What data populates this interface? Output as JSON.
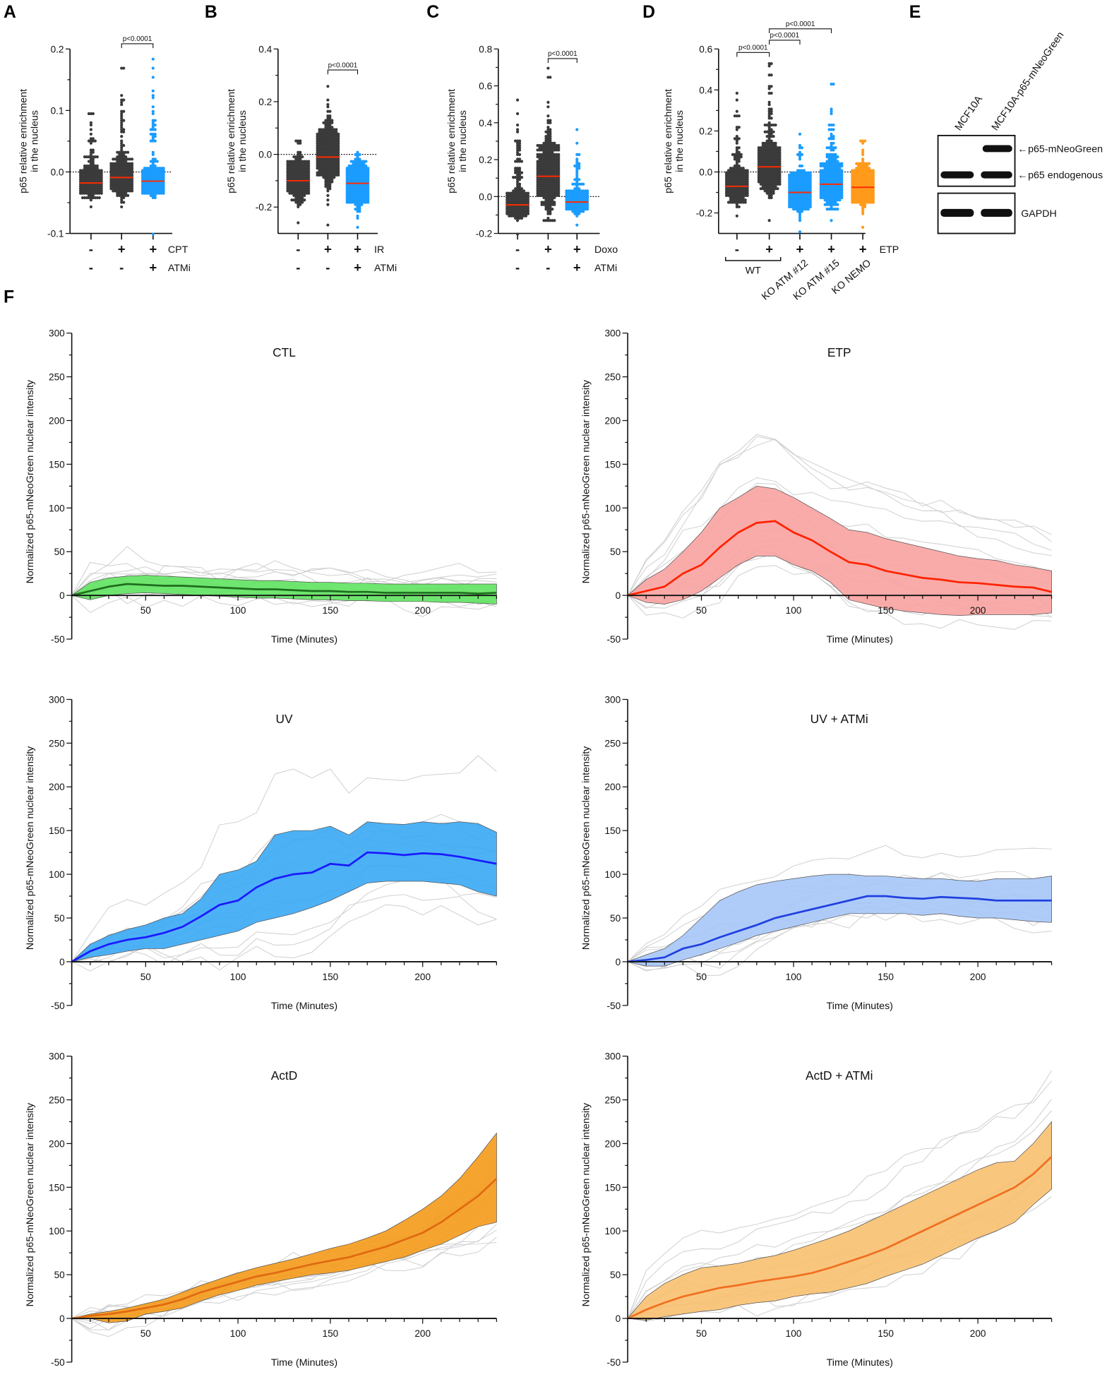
{
  "panel_letters": {
    "A": "A",
    "B": "B",
    "C": "C",
    "D": "D",
    "E": "E",
    "F": "F"
  },
  "blot": {
    "lanes": [
      "MCF10A",
      "MCF10A-p65-mNeoGreen"
    ],
    "band_labels": [
      "p65-mNeoGreen",
      "p65 endogenous"
    ],
    "loading_label": "GAPDH"
  },
  "chart_data": [
    {
      "type": "scatter",
      "panel": "A",
      "ylabel": [
        "p65 relative enrichment",
        "in the nucleus"
      ],
      "ylim": [
        -0.1,
        0.2
      ],
      "yticks": [
        0.2,
        0.1,
        0.0,
        -0.1
      ],
      "ytick_labels": [
        "0.2",
        "0.1",
        "0.0",
        "-0.1"
      ],
      "ref_line": 0,
      "groups": [
        {
          "median": -0.018,
          "sd": 0.01,
          "min": -0.057,
          "max": 0.094,
          "color": "#3a3a3a"
        },
        {
          "median": -0.009,
          "sd": 0.014,
          "min": -0.057,
          "max": 0.167,
          "color": "#3a3a3a"
        },
        {
          "median": -0.015,
          "sd": 0.01,
          "min": -0.1,
          "max": 0.185,
          "color": "#1a9cff"
        }
      ],
      "treatment_rows": [
        {
          "label": "CPT",
          "signs": [
            "-",
            "+",
            "+"
          ]
        },
        {
          "label": "ATMi",
          "signs": [
            "-",
            "-",
            "+"
          ]
        }
      ],
      "comparisons": [
        {
          "from": 1,
          "to": 2,
          "label": "p<0.0001"
        }
      ]
    },
    {
      "type": "scatter",
      "panel": "B",
      "ylabel": [
        "p65 relative enrichment",
        "in the nucleus"
      ],
      "ylim": [
        -0.3,
        0.4
      ],
      "yticks": [
        0.4,
        0.2,
        0.0,
        -0.2
      ],
      "ytick_labels": [
        "0.4",
        "0.2",
        "0.0",
        "-0.2"
      ],
      "ref_line": 0,
      "groups": [
        {
          "median": -0.1,
          "sd": 0.035,
          "min": -0.26,
          "max": 0.05,
          "color": "#3a3a3a"
        },
        {
          "median": -0.01,
          "sd": 0.055,
          "min": -0.27,
          "max": 0.26,
          "color": "#3a3a3a"
        },
        {
          "median": -0.11,
          "sd": 0.04,
          "min": -0.28,
          "max": 0.01,
          "color": "#1a9cff"
        }
      ],
      "treatment_rows": [
        {
          "label": "IR",
          "signs": [
            "-",
            "+",
            "+"
          ]
        },
        {
          "label": "ATMi",
          "signs": [
            "-",
            "-",
            "+"
          ]
        }
      ],
      "comparisons": [
        {
          "from": 1,
          "to": 2,
          "label": "p<0.0001"
        }
      ]
    },
    {
      "type": "scatter",
      "panel": "C",
      "ylabel": [
        "p65 relative enrichment",
        "in the nucleus"
      ],
      "ylim": [
        -0.2,
        0.8
      ],
      "yticks": [
        0.8,
        0.6,
        0.4,
        0.2,
        0.0,
        -0.2
      ],
      "ytick_labels": [
        "0.8",
        "0.6",
        "0.4",
        "0.2",
        "0.0",
        "-0.2"
      ],
      "ref_line": 0,
      "groups": [
        {
          "median": -0.045,
          "sd": 0.03,
          "min": -0.2,
          "max": 0.52,
          "color": "#3a3a3a"
        },
        {
          "median": 0.11,
          "sd": 0.1,
          "min": -0.13,
          "max": 0.7,
          "color": "#3a3a3a"
        },
        {
          "median": -0.03,
          "sd": 0.025,
          "min": -0.15,
          "max": 0.36,
          "color": "#1a9cff"
        }
      ],
      "treatment_rows": [
        {
          "label": "Doxo",
          "signs": [
            "-",
            "+",
            "+"
          ]
        },
        {
          "label": "ATMi",
          "signs": [
            "-",
            "-",
            "+"
          ]
        }
      ],
      "comparisons": [
        {
          "from": 1,
          "to": 2,
          "label": "p<0.0001"
        }
      ]
    },
    {
      "type": "scatter",
      "panel": "D",
      "ylabel": [
        "p65 relative enrichment",
        "in the nucleus"
      ],
      "ylim": [
        -0.3,
        0.6
      ],
      "yticks": [
        0.6,
        0.4,
        0.2,
        0.0,
        -0.2
      ],
      "ytick_labels": [
        "0.6",
        "0.4",
        "0.2",
        "0.0",
        "-0.2"
      ],
      "ref_line": 0,
      "groups": [
        {
          "median": -0.07,
          "sd": 0.035,
          "min": -0.22,
          "max": 0.38,
          "color": "#3a3a3a"
        },
        {
          "median": 0.025,
          "sd": 0.06,
          "min": -0.24,
          "max": 0.53,
          "color": "#3a3a3a"
        },
        {
          "median": -0.1,
          "sd": 0.045,
          "min": -0.29,
          "max": 0.19,
          "color": "#1a9cff"
        },
        {
          "median": -0.06,
          "sd": 0.05,
          "min": -0.24,
          "max": 0.43,
          "color": "#1a9cff"
        },
        {
          "median": -0.075,
          "sd": 0.045,
          "min": -0.27,
          "max": 0.15,
          "color": "#ff9a1a"
        }
      ],
      "treatment_rows": [
        {
          "label": "ETP",
          "signs": [
            "-",
            "+",
            "+",
            "+",
            "+"
          ]
        }
      ],
      "group_labels": {
        "wt": "WT",
        "ko": [
          "KO ATM  #12",
          "KO ATM #15",
          "KO NEMO"
        ]
      },
      "comparisons": [
        {
          "from": 0,
          "to": 1,
          "label": "p<0.0001"
        },
        {
          "from": 1,
          "to": 2,
          "label": "p<0.0001"
        },
        {
          "from": 1,
          "to": 3,
          "label": "p<0.0001"
        }
      ]
    },
    {
      "type": "area",
      "panel": "F",
      "title": "CTL",
      "xlabel": "Time (Minutes)",
      "ylabel": "Normalized p65-mNeoGreen nuclear intensity",
      "xlim": [
        10,
        240
      ],
      "ylim": [
        -50,
        300
      ],
      "xticks": [
        50,
        100,
        150,
        200
      ],
      "yticks": [
        300,
        250,
        200,
        150,
        100,
        50,
        0,
        -50
      ],
      "fill": "#5fe35f",
      "line": "#1f6e1f",
      "individual_traces": 12,
      "x": [
        10,
        20,
        30,
        40,
        50,
        60,
        70,
        80,
        90,
        100,
        110,
        120,
        130,
        140,
        150,
        160,
        170,
        180,
        190,
        200,
        210,
        220,
        230,
        240
      ],
      "mean": [
        0,
        5,
        10,
        13,
        12,
        11,
        11,
        10,
        9,
        8,
        7,
        7,
        6,
        5,
        5,
        4,
        4,
        3,
        3,
        3,
        3,
        3,
        2,
        3
      ],
      "upper": [
        0,
        15,
        20,
        22,
        23,
        22,
        21,
        20,
        19,
        18,
        17,
        17,
        16,
        15,
        15,
        14,
        14,
        13,
        13,
        13,
        13,
        13,
        13,
        13
      ],
      "lower": [
        0,
        -5,
        0,
        2,
        3,
        2,
        1,
        0,
        -1,
        -2,
        -3,
        -3,
        -4,
        -5,
        -5,
        -6,
        -6,
        -7,
        -7,
        -7,
        -8,
        -8,
        -9,
        -10
      ]
    },
    {
      "type": "area",
      "panel": "F",
      "title": "ETP",
      "xlabel": "Time (Minutes)",
      "ylabel": "Normalized p65-mNeoGreen nuclear intensity",
      "xlim": [
        10,
        240
      ],
      "ylim": [
        -50,
        300
      ],
      "xticks": [
        50,
        100,
        150,
        200
      ],
      "yticks": [
        300,
        250,
        200,
        150,
        100,
        50,
        0,
        -50
      ],
      "fill": "#f8a2a0",
      "line": "#ff2200",
      "individual_traces": 12,
      "x": [
        10,
        20,
        30,
        40,
        50,
        60,
        70,
        80,
        90,
        100,
        110,
        120,
        130,
        140,
        150,
        160,
        170,
        180,
        190,
        200,
        210,
        220,
        230,
        240
      ],
      "mean": [
        0,
        5,
        10,
        25,
        35,
        55,
        72,
        83,
        85,
        72,
        63,
        50,
        38,
        35,
        28,
        24,
        20,
        18,
        15,
        14,
        12,
        10,
        9,
        4
      ],
      "upper": [
        0,
        18,
        30,
        50,
        72,
        100,
        112,
        125,
        122,
        112,
        100,
        88,
        75,
        72,
        65,
        60,
        55,
        50,
        45,
        42,
        40,
        35,
        32,
        28
      ],
      "lower": [
        0,
        -8,
        -10,
        -5,
        5,
        20,
        35,
        45,
        45,
        35,
        28,
        15,
        -5,
        -10,
        -15,
        -18,
        -20,
        -22,
        -23,
        -22,
        -22,
        -22,
        -22,
        -20
      ]
    },
    {
      "type": "area",
      "panel": "F",
      "title": "UV",
      "xlabel": "Time (Minutes)",
      "ylabel": "Normalized p65-mNeoGreen nuclear intensity",
      "xlim": [
        10,
        240
      ],
      "ylim": [
        -50,
        300
      ],
      "xticks": [
        50,
        100,
        150,
        200
      ],
      "yticks": [
        300,
        250,
        200,
        150,
        100,
        50,
        0,
        -50
      ],
      "fill": "#3aa9f5",
      "line": "#1a1aff",
      "individual_traces": 12,
      "x": [
        10,
        20,
        30,
        40,
        50,
        60,
        70,
        80,
        90,
        100,
        110,
        120,
        130,
        140,
        150,
        160,
        170,
        180,
        190,
        200,
        210,
        220,
        230,
        240
      ],
      "mean": [
        0,
        12,
        20,
        25,
        28,
        33,
        40,
        52,
        65,
        70,
        85,
        95,
        100,
        102,
        112,
        110,
        125,
        124,
        122,
        124,
        123,
        120,
        116,
        112
      ],
      "upper": [
        0,
        20,
        30,
        37,
        42,
        50,
        55,
        72,
        100,
        105,
        115,
        145,
        150,
        150,
        155,
        145,
        160,
        158,
        157,
        160,
        158,
        160,
        158,
        148
      ],
      "lower": [
        0,
        5,
        8,
        12,
        15,
        15,
        20,
        25,
        30,
        35,
        45,
        50,
        55,
        62,
        70,
        80,
        90,
        92,
        92,
        92,
        90,
        88,
        80,
        75
      ]
    },
    {
      "type": "area",
      "panel": "F",
      "title": "UV + ATMi",
      "xlabel": "Time (Minutes)",
      "ylabel": "Normalized p65-mNeoGreen nuclear intensity",
      "xlim": [
        10,
        240
      ],
      "ylim": [
        -50,
        300
      ],
      "xticks": [
        50,
        100,
        150,
        200
      ],
      "yticks": [
        300,
        250,
        200,
        150,
        100,
        50,
        0,
        -50
      ],
      "fill": "#a6c6f8",
      "line": "#2040e0",
      "individual_traces": 12,
      "x": [
        10,
        20,
        30,
        40,
        50,
        60,
        70,
        80,
        90,
        100,
        110,
        120,
        130,
        140,
        150,
        160,
        170,
        180,
        190,
        200,
        210,
        220,
        230,
        240
      ],
      "mean": [
        0,
        2,
        5,
        15,
        20,
        28,
        35,
        42,
        50,
        55,
        60,
        65,
        70,
        75,
        75,
        73,
        72,
        74,
        73,
        72,
        70,
        70,
        70,
        70
      ],
      "upper": [
        0,
        8,
        15,
        30,
        50,
        70,
        80,
        88,
        92,
        95,
        98,
        100,
        100,
        98,
        98,
        96,
        95,
        95,
        93,
        92,
        95,
        95,
        95,
        98
      ],
      "lower": [
        0,
        -5,
        -5,
        2,
        8,
        15,
        22,
        30,
        35,
        40,
        45,
        50,
        55,
        55,
        55,
        55,
        53,
        55,
        52,
        50,
        50,
        48,
        46,
        45
      ]
    },
    {
      "type": "area",
      "panel": "F",
      "title": "ActD",
      "xlabel": "Time (Minutes)",
      "ylabel": "Normalized p65-mNeoGreen nuclear intensity",
      "xlim": [
        10,
        240
      ],
      "ylim": [
        -50,
        300
      ],
      "xticks": [
        50,
        100,
        150,
        200
      ],
      "yticks": [
        300,
        250,
        200,
        150,
        100,
        50,
        0,
        -50
      ],
      "fill": "#f59a1a",
      "line": "#e06a10",
      "individual_traces": 12,
      "x": [
        10,
        20,
        30,
        40,
        50,
        60,
        70,
        80,
        90,
        100,
        110,
        120,
        130,
        140,
        150,
        160,
        170,
        180,
        190,
        200,
        210,
        220,
        230,
        240
      ],
      "mean": [
        0,
        3,
        5,
        8,
        12,
        16,
        22,
        30,
        36,
        42,
        48,
        52,
        57,
        62,
        66,
        70,
        76,
        82,
        90,
        98,
        110,
        125,
        140,
        160
      ],
      "upper": [
        0,
        5,
        8,
        12,
        17,
        22,
        30,
        38,
        45,
        52,
        58,
        63,
        68,
        74,
        80,
        85,
        92,
        100,
        112,
        125,
        140,
        160,
        185,
        212
      ],
      "lower": [
        0,
        0,
        -5,
        -3,
        5,
        8,
        12,
        20,
        27,
        32,
        38,
        42,
        46,
        50,
        52,
        55,
        60,
        65,
        70,
        78,
        85,
        95,
        105,
        110
      ]
    },
    {
      "type": "area",
      "panel": "F",
      "title": "ActD + ATMi",
      "xlabel": "Time (Minutes)",
      "ylabel": "Normalized p65-mNeoGreen nuclear intensity",
      "xlim": [
        10,
        240
      ],
      "ylim": [
        -50,
        300
      ],
      "xticks": [
        50,
        100,
        150,
        200
      ],
      "yticks": [
        300,
        250,
        200,
        150,
        100,
        50,
        0,
        -50
      ],
      "fill": "#f8c070",
      "line": "#f07020",
      "individual_traces": 12,
      "x": [
        10,
        20,
        30,
        40,
        50,
        60,
        70,
        80,
        90,
        100,
        110,
        120,
        130,
        140,
        150,
        160,
        170,
        180,
        190,
        200,
        210,
        220,
        230,
        240
      ],
      "mean": [
        0,
        10,
        18,
        25,
        30,
        35,
        38,
        42,
        45,
        48,
        52,
        58,
        65,
        72,
        80,
        90,
        100,
        110,
        120,
        130,
        140,
        150,
        165,
        185
      ],
      "upper": [
        0,
        25,
        40,
        50,
        58,
        60,
        63,
        68,
        72,
        78,
        85,
        92,
        100,
        110,
        120,
        130,
        140,
        150,
        160,
        170,
        178,
        180,
        200,
        225
      ],
      "lower": [
        0,
        -2,
        2,
        5,
        8,
        10,
        15,
        18,
        20,
        25,
        28,
        30,
        35,
        40,
        48,
        55,
        62,
        72,
        82,
        92,
        100,
        110,
        130,
        148
      ]
    }
  ]
}
